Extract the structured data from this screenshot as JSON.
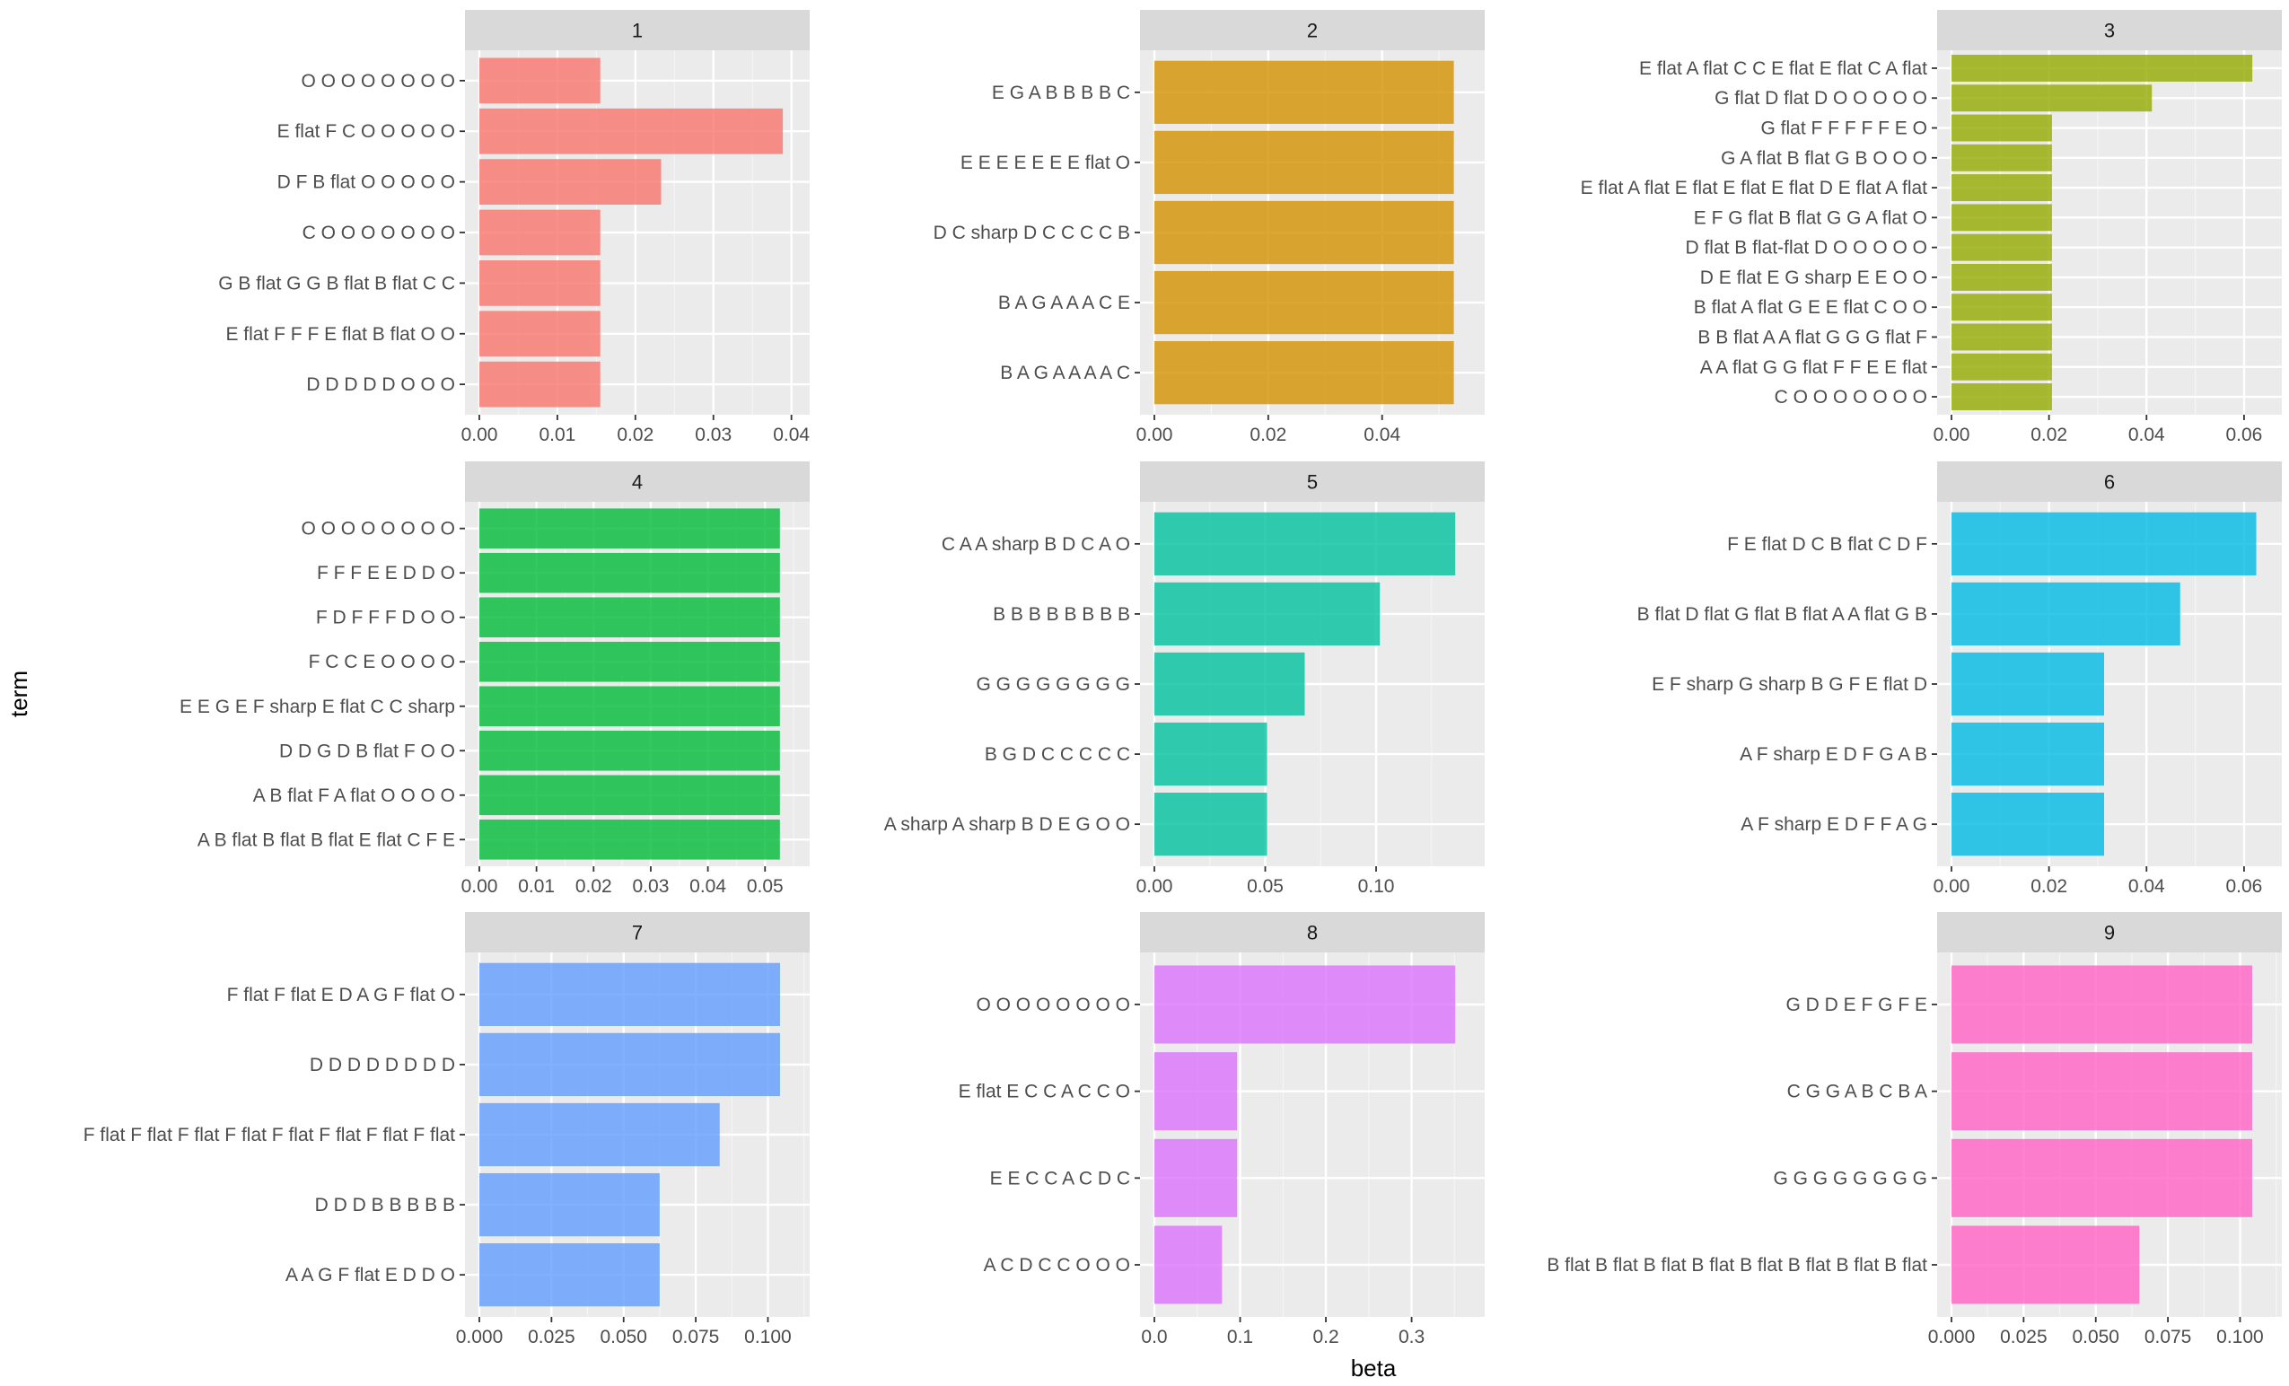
{
  "chart_data": {
    "type": "bar",
    "orientation": "horizontal",
    "facet_layout": "3x3",
    "xlabel": "beta",
    "ylabel": "term",
    "grid": true,
    "panels": [
      {
        "strip": "1",
        "color": "#F8766D",
        "xlim": [
          0,
          0.0405
        ],
        "xticks": [
          0.0,
          0.01,
          0.02,
          0.03,
          0.04
        ],
        "xtick_labels": [
          "0.00",
          "0.01",
          "0.02",
          "0.03",
          "0.04"
        ],
        "terms": [
          "O O O O O O O O",
          "E flat F  C  O O O O O",
          "D  F  B flat O O O O O",
          "C  O O O O O O O",
          "G  B flat G  G  B flat B flat C  C",
          "E flat F  F  F  E flat B flat O O",
          "D  D  D  D  D  O O O"
        ],
        "values": [
          0.0155,
          0.0389,
          0.0233,
          0.0155,
          0.0155,
          0.0155,
          0.0155
        ]
      },
      {
        "strip": "2",
        "color": "#D39200",
        "xlim": [
          0,
          0.0555
        ],
        "xticks": [
          0.0,
          0.02,
          0.04
        ],
        "xtick_labels": [
          "0.00",
          "0.02",
          "0.04"
        ],
        "terms": [
          "E  G  A  B  B  B  B  C",
          "E  E  E  E  E  E  E flat O",
          "D  C sharp D  C  C  C  C  B",
          "B  A  G  A  A  A  C  E",
          "B  A  G  A  A  A  A  C"
        ],
        "values": [
          0.0526,
          0.0526,
          0.0526,
          0.0526,
          0.0526
        ]
      },
      {
        "strip": "3",
        "color": "#93AA00",
        "xlim": [
          0,
          0.0648
        ],
        "xticks": [
          0.0,
          0.02,
          0.04,
          0.06
        ],
        "xtick_labels": [
          "0.00",
          "0.02",
          "0.04",
          "0.06"
        ],
        "terms": [
          "E flat A flat C  C  E flat E flat C  A flat",
          "G flat D flat D  O O O O O",
          "G flat F  F  F  F  F  E  O",
          "G  A flat B flat G  B  O O O",
          "E flat A flat E flat E flat E flat D  E flat A flat",
          "E  F  G flat B flat G  G  A flat O",
          "D flat B flat-flat D  O O O O O",
          "D  E flat E  G sharp E  E  O O",
          "B flat A flat G  E  E flat C  O O",
          "B  B flat A  A flat G  G  G flat F",
          "A  A flat G  G flat F  F  E  E flat",
          "C  O O O O O O O"
        ],
        "values": [
          0.0617,
          0.0411,
          0.0206,
          0.0206,
          0.0206,
          0.0206,
          0.0206,
          0.0206,
          0.0206,
          0.0206,
          0.0206,
          0.0206
        ]
      },
      {
        "strip": "4",
        "color": "#00BA38",
        "xlim": [
          0,
          0.0553
        ],
        "xticks": [
          0.0,
          0.01,
          0.02,
          0.03,
          0.04,
          0.05
        ],
        "xtick_labels": [
          "0.00",
          "0.01",
          "0.02",
          "0.03",
          "0.04",
          "0.05"
        ],
        "terms": [
          "O O O O O O O O",
          "F  F  F  E  E  D  D  O",
          "F  D  F  F  F  D  O O",
          "F  C  C  E  O O O O",
          "E  E  G  E  F sharp E flat C  C sharp",
          "D  D  G  D  B flat F  O O",
          "A  B flat F  A flat O O O O",
          "A  B flat B flat B flat E flat C  F  E"
        ],
        "values": [
          0.0526,
          0.0526,
          0.0526,
          0.0526,
          0.0526,
          0.0526,
          0.0526,
          0.0526
        ]
      },
      {
        "strip": "5",
        "color": "#00C19F",
        "xlim": [
          0,
          0.1425
        ],
        "xticks": [
          0.0,
          0.05,
          0.1
        ],
        "xtick_labels": [
          "0.00",
          "0.05",
          "0.10"
        ],
        "terms": [
          "C  A  A sharp B  D  C  A  O",
          "B  B  B  B  B  B  B  B",
          "G  G  G  G  G  G  G  G",
          "B  G  D  C  C  C  C  C",
          "A sharp A sharp B  D  E  G  O O"
        ],
        "values": [
          0.1357,
          0.1017,
          0.0678,
          0.0508,
          0.0508
        ]
      },
      {
        "strip": "6",
        "color": "#00B9E3",
        "xlim": [
          0,
          0.0648
        ],
        "xticks": [
          0.0,
          0.02,
          0.04,
          0.06
        ],
        "xtick_labels": [
          "0.00",
          "0.02",
          "0.04",
          "0.06"
        ],
        "terms": [
          "F  E flat D  C  B flat C  D  F",
          "B flat D flat G flat B flat A  A flat G  B",
          "E  F sharp G sharp B  G  F  E flat D",
          "A  F sharp E  D  F  G  A  B",
          "A  F sharp E  D  F  F  A  G"
        ],
        "values": [
          0.0625,
          0.0469,
          0.0313,
          0.0313,
          0.0313
        ]
      },
      {
        "strip": "7",
        "color": "#619CFF",
        "xlim": [
          0,
          0.1095
        ],
        "xticks": [
          0.0,
          0.025,
          0.05,
          0.075,
          0.1
        ],
        "xtick_labels": [
          "0.000",
          "0.025",
          "0.050",
          "0.075",
          "0.100"
        ],
        "terms": [
          "F flat F flat E  D  A  G  F flat O",
          "D  D  D  D  D  D  D  D",
          "F flat F flat F flat F flat F flat F flat F flat F flat",
          "D  D  D  B  B  B  B  B",
          "A  A  G  F flat E  D  D  O"
        ],
        "values": [
          0.1042,
          0.1042,
          0.0833,
          0.0625,
          0.0625
        ]
      },
      {
        "strip": "8",
        "color": "#DB72FB",
        "xlim": [
          0,
          0.3685
        ],
        "xticks": [
          0.0,
          0.1,
          0.2,
          0.3
        ],
        "xtick_labels": [
          "0.0",
          "0.1",
          "0.2",
          "0.3"
        ],
        "terms": [
          "O O O O O O O O",
          "E flat E  C  C  A  C  C  O",
          "E  E  C  C  A  C  D  C",
          "A  C  D  C  C  O O O"
        ],
        "values": [
          0.3509,
          0.0965,
          0.0965,
          0.0789
        ]
      },
      {
        "strip": "9",
        "color": "#FF61C3",
        "xlim": [
          0,
          0.1095
        ],
        "xticks": [
          0.0,
          0.025,
          0.05,
          0.075,
          0.1
        ],
        "xtick_labels": [
          "0.000",
          "0.025",
          "0.050",
          "0.075",
          "0.100"
        ],
        "terms": [
          "G  D  D  E  F  G  F  E",
          "C  G  G  A  B  C  B  A",
          "G  G  G  G  G  G  G  G",
          "B flat B flat B flat B flat B flat B flat B flat B flat"
        ],
        "values": [
          0.1042,
          0.1042,
          0.1042,
          0.0651
        ]
      }
    ]
  }
}
